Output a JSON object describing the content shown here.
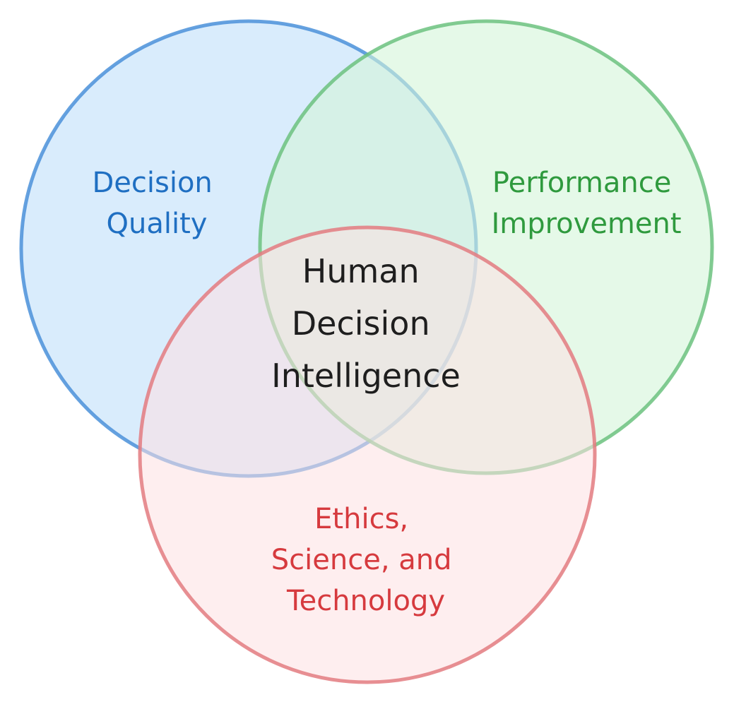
{
  "diagram": {
    "circles": {
      "decision_quality": {
        "lines": [
          "Decision",
          "Quality"
        ],
        "stroke": "#4a90d9",
        "fill": "#cce6fb",
        "text_color": "#1f6fc2"
      },
      "performance_improvement": {
        "lines": [
          "Performance",
          "Improvement"
        ],
        "stroke": "#6cc27f",
        "fill": "#d3f5d8",
        "text_color": "#2f9a3e"
      },
      "ethics_science_technology": {
        "lines": [
          "Ethics,",
          "Science, and",
          "Technology"
        ],
        "stroke": "#e37b80",
        "fill": "#fde0e1",
        "text_color": "#d63a3e"
      }
    },
    "center": {
      "lines": [
        "Human",
        "Decision",
        "Intelligence"
      ],
      "text_color": "#1e1e1e"
    }
  }
}
